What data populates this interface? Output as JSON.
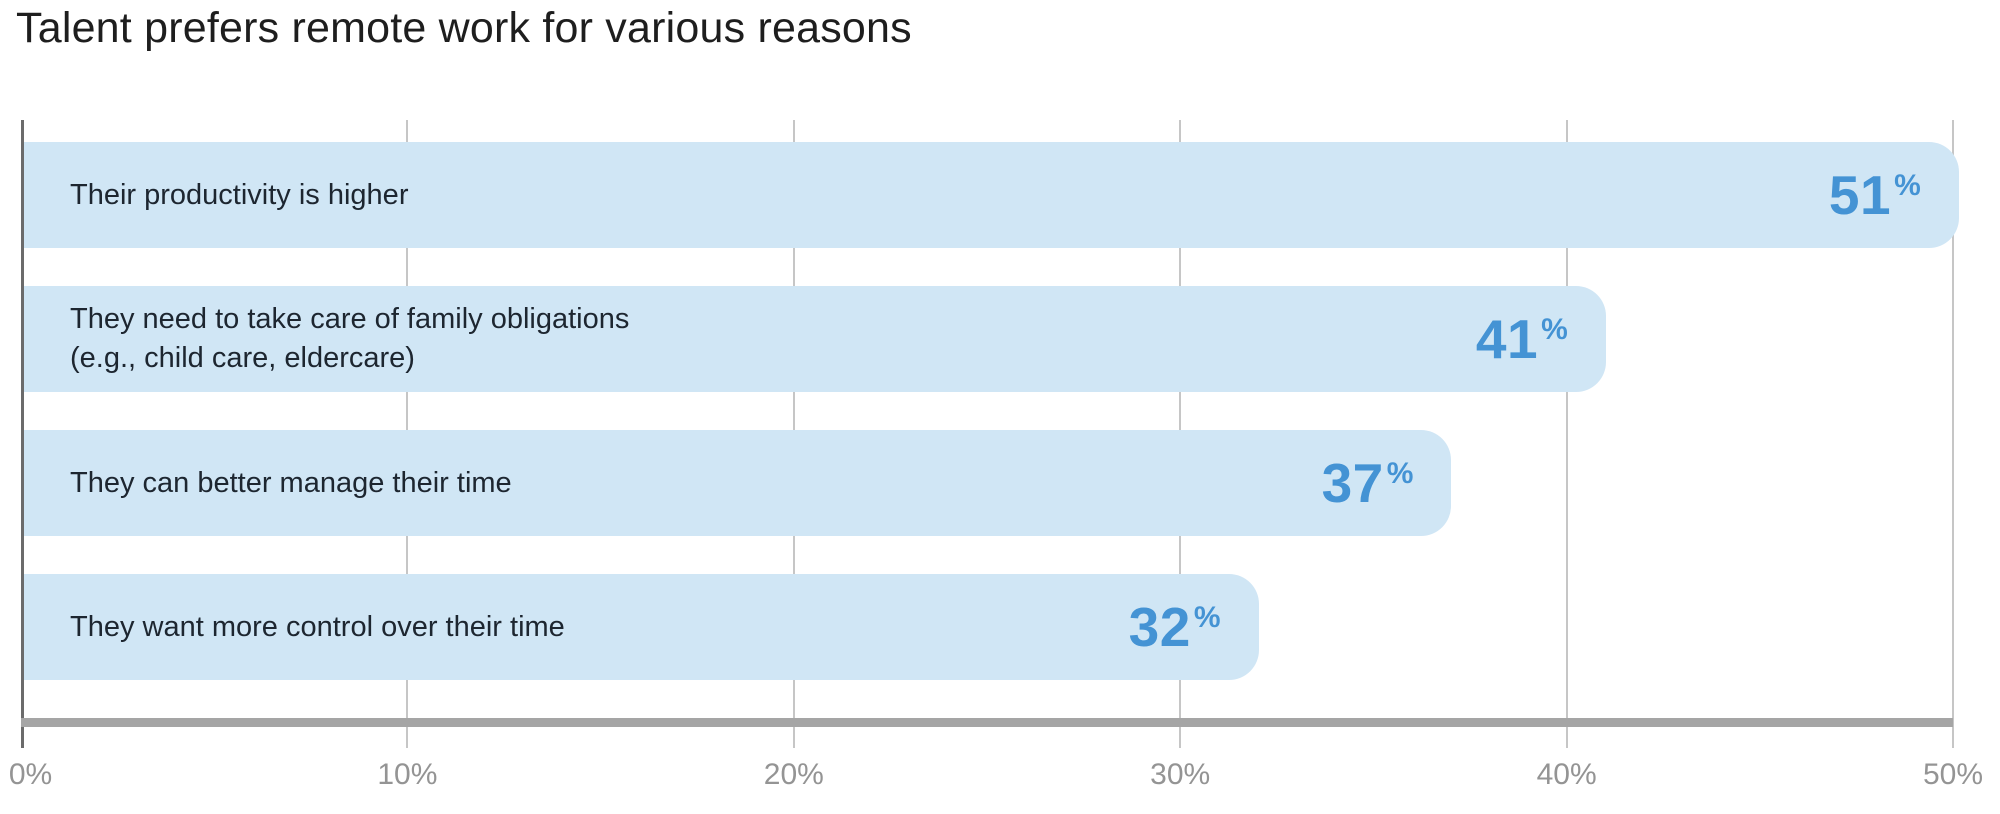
{
  "header": {
    "title": "Talent prefers remote work for various reasons"
  },
  "chart_data": {
    "type": "bar",
    "orientation": "horizontal",
    "title": "Talent prefers remote work for various reasons",
    "categories": [
      "Their productivity is higher",
      "They need to take care of family obligations\n(e.g., child care, eldercare)",
      "They can better manage their time",
      "They want more control over their time"
    ],
    "values": [
      51,
      41,
      37,
      32
    ],
    "unit": "%",
    "xlabel": "",
    "ylabel": "",
    "xlim": [
      0,
      50
    ],
    "x_ticks": [
      "0%",
      "10%",
      "20%",
      "30%",
      "40%",
      "50%"
    ],
    "grid": true,
    "legend": false,
    "bars": [
      {
        "label": "Their productivity is higher",
        "value": 51,
        "number": "51",
        "unit": "%"
      },
      {
        "label": "They need to take care of family obligations\n(e.g., child care, eldercare)",
        "value": 41,
        "number": "41",
        "unit": "%"
      },
      {
        "label": "They can better manage their time",
        "value": 37,
        "number": "37",
        "unit": "%"
      },
      {
        "label": "They want more control over their time",
        "value": 32,
        "number": "32",
        "unit": "%"
      }
    ]
  },
  "colors": {
    "background": "#ffffff",
    "title_text": "#1e1e1e",
    "bar_fill": "#d0e6f5",
    "value_text": "#4493d4",
    "category_text": "#1d2630",
    "gridline": "#c6c6c6",
    "y_axis_line": "#6b6b6b",
    "axis_line": "#a5a5a5",
    "tick_label": "#949494"
  }
}
